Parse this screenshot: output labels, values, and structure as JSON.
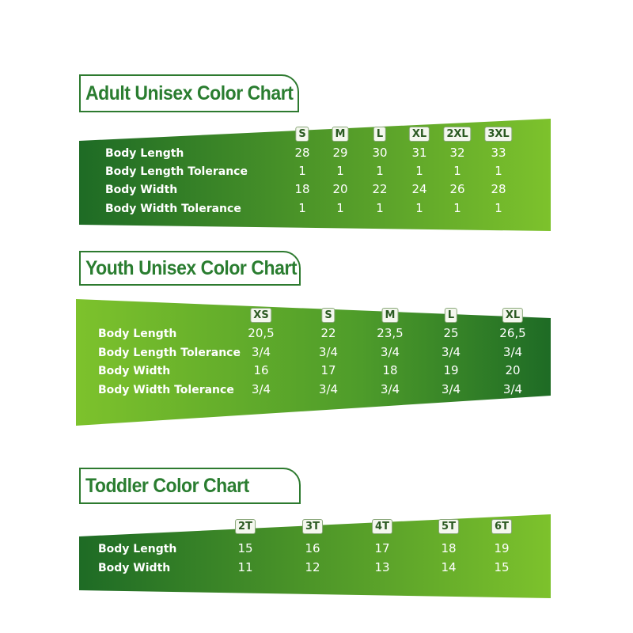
{
  "colors": {
    "dark_green": "#1e6b25",
    "light_green": "#7dc22c",
    "title_green": "#2a7d30"
  },
  "charts": [
    {
      "id": "adult",
      "title": "Adult Unisex Color Chart",
      "sizes": [
        "S",
        "M",
        "L",
        "XL",
        "2XL",
        "3XL"
      ],
      "rows": [
        {
          "label": "Body Length",
          "values": [
            "28",
            "29",
            "30",
            "31",
            "32",
            "33"
          ]
        },
        {
          "label": "Body Length Tolerance",
          "values": [
            "1",
            "1",
            "1",
            "1",
            "1",
            "1"
          ]
        },
        {
          "label": "Body Width",
          "values": [
            "18",
            "20",
            "22",
            "24",
            "26",
            "28"
          ]
        },
        {
          "label": "Body Width  Tolerance",
          "values": [
            "1",
            "1",
            "1",
            "1",
            "1",
            "1"
          ]
        }
      ]
    },
    {
      "id": "youth",
      "title": "Youth Unisex Color Chart",
      "sizes": [
        "XS",
        "S",
        "M",
        "L",
        "XL"
      ],
      "rows": [
        {
          "label": "Body Length",
          "values": [
            "20,5",
            "22",
            "23,5",
            "25",
            "26,5"
          ]
        },
        {
          "label": "Body Length Tolerance",
          "values": [
            "3/4",
            "3/4",
            "3/4",
            "3/4",
            "3/4"
          ]
        },
        {
          "label": "Body Width",
          "values": [
            "16",
            "17",
            "18",
            "19",
            "20"
          ]
        },
        {
          "label": "Body Width  Tolerance",
          "values": [
            "3/4",
            "3/4",
            "3/4",
            "3/4",
            "3/4"
          ]
        }
      ]
    },
    {
      "id": "toddler",
      "title": "Toddler  Color  Chart",
      "sizes": [
        "2T",
        "3T",
        "4T",
        "5T",
        "6T"
      ],
      "rows": [
        {
          "label": "Body Length",
          "values": [
            "15",
            "16",
            "17",
            "18",
            "19"
          ]
        },
        {
          "label": "Body Width",
          "values": [
            "11",
            "12",
            "13",
            "14",
            "15"
          ]
        }
      ]
    }
  ]
}
